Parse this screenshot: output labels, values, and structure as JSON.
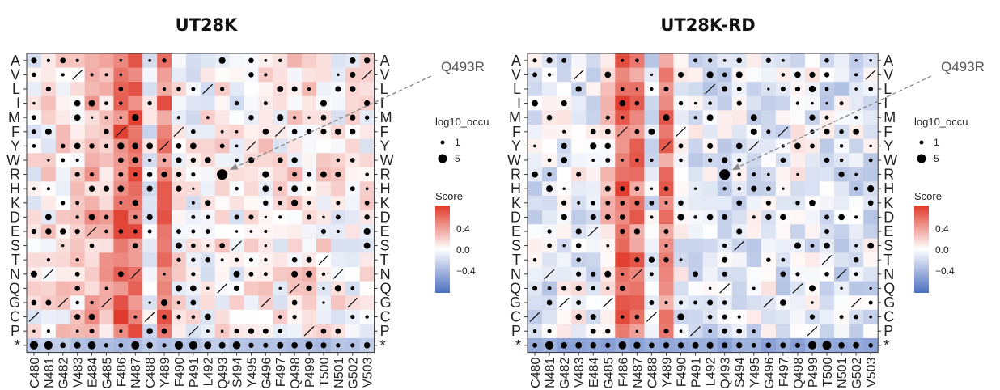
{
  "chart_data": [
    {
      "type": "heatmap",
      "title": "UT28K",
      "rows": [
        "A",
        "V",
        "L",
        "I",
        "M",
        "F",
        "Y",
        "W",
        "R",
        "H",
        "K",
        "D",
        "E",
        "S",
        "T",
        "N",
        "Q",
        "G",
        "C",
        "P",
        "*"
      ],
      "columns": [
        "C480",
        "N481",
        "G482",
        "V483",
        "E484",
        "G485",
        "F486",
        "N487",
        "C488",
        "Y489",
        "F490",
        "P491",
        "L492",
        "Q493",
        "S494",
        "Y495",
        "G496",
        "F497",
        "Q498",
        "P499",
        "T500",
        "N501",
        "G502",
        "V503"
      ],
      "score_colorscale": {
        "low": "#4b6fc0",
        "mid": "#ffffff",
        "high": "#e0392a",
        "min": -0.6,
        "max": 0.6
      },
      "score_ticks": [
        "0.4",
        "0.0",
        "−0.4"
      ],
      "column_score_offsets": [
        0.02,
        0.05,
        0.08,
        0.1,
        0.2,
        0.2,
        0.45,
        0.45,
        -0.05,
        0.4,
        0.03,
        -0.02,
        0.0,
        0.05,
        0.0,
        0.02,
        0.08,
        0.03,
        0.08,
        0.1,
        0.05,
        0.02,
        0.0,
        0.02
      ],
      "stop_row_score": -0.25,
      "highlight": {
        "row": "R",
        "column": "Q493",
        "label": "Q493R"
      },
      "legend_size_title": "log10_occu",
      "legend_size_values": [
        "1",
        "5"
      ],
      "legend_color_title": "Score",
      "wildtype_cells": [
        [
          "C",
          "C480"
        ],
        [
          "N",
          "N481"
        ],
        [
          "G",
          "G482"
        ],
        [
          "V",
          "V483"
        ],
        [
          "E",
          "E484"
        ],
        [
          "G",
          "G485"
        ],
        [
          "F",
          "F486"
        ],
        [
          "N",
          "N487"
        ],
        [
          "C",
          "C488"
        ],
        [
          "Y",
          "Y489"
        ],
        [
          "F",
          "F490"
        ],
        [
          "P",
          "P491"
        ],
        [
          "L",
          "L492"
        ],
        [
          "Q",
          "Q493"
        ],
        [
          "S",
          "S494"
        ],
        [
          "Y",
          "Y495"
        ],
        [
          "G",
          "G496"
        ],
        [
          "F",
          "F497"
        ],
        [
          "Q",
          "Q498"
        ],
        [
          "P",
          "P499"
        ],
        [
          "T",
          "T500"
        ],
        [
          "N",
          "N501"
        ],
        [
          "G",
          "G502"
        ],
        [
          "V",
          "V503"
        ]
      ]
    },
    {
      "type": "heatmap",
      "title": "UT28K-RD",
      "rows": [
        "A",
        "V",
        "L",
        "I",
        "M",
        "F",
        "Y",
        "W",
        "R",
        "H",
        "K",
        "D",
        "E",
        "S",
        "T",
        "N",
        "Q",
        "G",
        "C",
        "P",
        "*"
      ],
      "columns": [
        "C480",
        "N481",
        "G482",
        "V483",
        "E484",
        "G485",
        "F486",
        "N487",
        "C488",
        "Y489",
        "F490",
        "P491",
        "L492",
        "Q493",
        "S494",
        "Y495",
        "G496",
        "F497",
        "Q498",
        "P499",
        "T500",
        "N501",
        "G502",
        "V503"
      ],
      "score_colorscale": {
        "low": "#4b6fc0",
        "mid": "#ffffff",
        "high": "#e0392a",
        "min": -0.6,
        "max": 0.6
      },
      "score_ticks": [
        "0.4",
        "0.0",
        "−0.4"
      ],
      "column_score_offsets": [
        -0.1,
        -0.08,
        -0.05,
        -0.05,
        -0.05,
        0.1,
        0.45,
        0.4,
        -0.1,
        0.35,
        -0.05,
        -0.08,
        -0.1,
        -0.08,
        -0.08,
        -0.1,
        -0.05,
        -0.1,
        -0.05,
        -0.05,
        -0.08,
        -0.1,
        -0.1,
        -0.08
      ],
      "stop_row_score": -0.35,
      "highlight": {
        "row": "R",
        "column": "Q493",
        "label": "Q493R"
      },
      "legend_size_title": "log10_occu",
      "legend_size_values": [
        "1",
        "5"
      ],
      "legend_color_title": "Score",
      "wildtype_cells": [
        [
          "C",
          "C480"
        ],
        [
          "N",
          "N481"
        ],
        [
          "G",
          "G482"
        ],
        [
          "V",
          "V483"
        ],
        [
          "E",
          "E484"
        ],
        [
          "G",
          "G485"
        ],
        [
          "F",
          "F486"
        ],
        [
          "N",
          "N487"
        ],
        [
          "C",
          "C488"
        ],
        [
          "Y",
          "Y489"
        ],
        [
          "F",
          "F490"
        ],
        [
          "P",
          "P491"
        ],
        [
          "L",
          "L492"
        ],
        [
          "Q",
          "Q493"
        ],
        [
          "S",
          "S494"
        ],
        [
          "Y",
          "Y495"
        ],
        [
          "G",
          "G496"
        ],
        [
          "F",
          "F497"
        ],
        [
          "Q",
          "Q498"
        ],
        [
          "P",
          "P499"
        ],
        [
          "T",
          "T500"
        ],
        [
          "N",
          "N501"
        ],
        [
          "G",
          "G502"
        ],
        [
          "V",
          "V503"
        ]
      ]
    }
  ]
}
